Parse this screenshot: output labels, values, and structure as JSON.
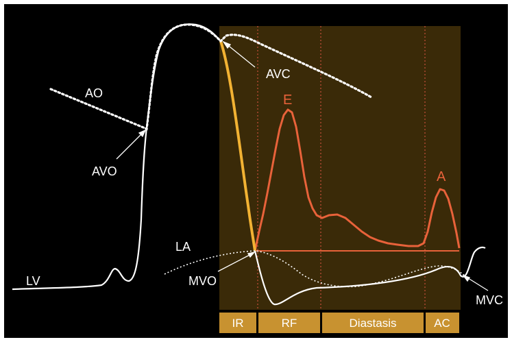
{
  "labels": {
    "ao": "AO",
    "avo": "AVO",
    "avc": "AVC",
    "la": "LA",
    "lv": "LV",
    "mvo": "MVO",
    "mvc": "MVC",
    "e_wave": "E",
    "a_wave": "A"
  },
  "phases": [
    {
      "label": "IR"
    },
    {
      "label": "RF"
    },
    {
      "label": "Diastasis"
    },
    {
      "label": "AC"
    }
  ],
  "colors": {
    "background": "#000000",
    "panel": "#3a2a08",
    "phase_bar": "#c89230",
    "lv_curve": "#ffffff",
    "isovolumic_segment": "#f2b233",
    "doppler": "#e8623a",
    "divider": "#c8503a"
  }
}
